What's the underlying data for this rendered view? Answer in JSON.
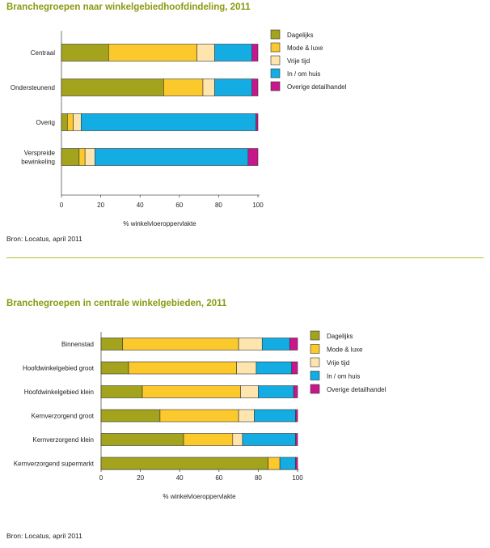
{
  "page": {
    "colors": {
      "heading": "#8a9a10",
      "divider": "#b7be2a",
      "series": [
        "#a3a31d",
        "#fcc92c",
        "#fde5ad",
        "#13ade3",
        "#c8168c"
      ]
    }
  },
  "section1": {
    "title": "Branchegroepen naar winkelgebiedhoofdindeling, 2011",
    "source": "Bron: Locatus, april 2011"
  },
  "section2": {
    "title": "Branchegroepen in centrale winkelgebieden, 2011",
    "source": "Bron: Locatus, april 2011"
  },
  "chart_data": [
    {
      "type": "bar",
      "orientation": "horizontal",
      "stacked": true,
      "title": "Branchegroepen naar winkelgebiedhoofdindeling, 2011",
      "xlabel": "% winkelvloeroppervlakte",
      "xlim": [
        0,
        100
      ],
      "xticks": [
        "0",
        "20",
        "40",
        "60",
        "80",
        "100"
      ],
      "legend_position": "right",
      "categories": [
        "Centraal",
        "Ondersteunend",
        "Overig",
        "Verspreide\nbewinkeling"
      ],
      "series": [
        {
          "name": "Dagelijks",
          "color": "#a3a31d",
          "values": [
            24,
            52,
            3,
            9
          ]
        },
        {
          "name": "Mode & luxe",
          "color": "#fcc92c",
          "values": [
            45,
            20,
            3,
            3
          ]
        },
        {
          "name": "Vrije tijd",
          "color": "#fde5ad",
          "values": [
            9,
            6,
            4,
            5
          ]
        },
        {
          "name": "In / om huis",
          "color": "#13ade3",
          "values": [
            19,
            19,
            89,
            78
          ]
        },
        {
          "name": "Overige detailhandel",
          "color": "#c8168c",
          "values": [
            3,
            3,
            1,
            5
          ]
        }
      ]
    },
    {
      "type": "bar",
      "orientation": "horizontal",
      "stacked": true,
      "title": "Branchegroepen in centrale winkelgebieden, 2011",
      "xlabel": "% winkelvloeroppervlakte",
      "xlim": [
        0,
        100
      ],
      "xticks": [
        "0",
        "20",
        "40",
        "60",
        "80",
        "100"
      ],
      "legend_position": "right",
      "categories": [
        "Binnenstad",
        "Hoofdwinkelgebied groot",
        "Hoofdwinkelgebied klein",
        "Kernverzorgend groot",
        "Kernverzorgend klein",
        "Kernverzorgend supermarkt"
      ],
      "series": [
        {
          "name": "Dagelijks",
          "color": "#a3a31d",
          "values": [
            11,
            14,
            21,
            30,
            42,
            85
          ]
        },
        {
          "name": "Mode & luxe",
          "color": "#fcc92c",
          "values": [
            59,
            55,
            50,
            40,
            25,
            6
          ]
        },
        {
          "name": "Vrije tijd",
          "color": "#fde5ad",
          "values": [
            12,
            10,
            9,
            8,
            5,
            0
          ]
        },
        {
          "name": "In / om huis",
          "color": "#13ade3",
          "values": [
            14,
            18,
            18,
            21,
            27,
            8
          ]
        },
        {
          "name": "Overige detailhandel",
          "color": "#c8168c",
          "values": [
            4,
            3,
            2,
            1,
            1,
            1
          ]
        }
      ]
    }
  ]
}
